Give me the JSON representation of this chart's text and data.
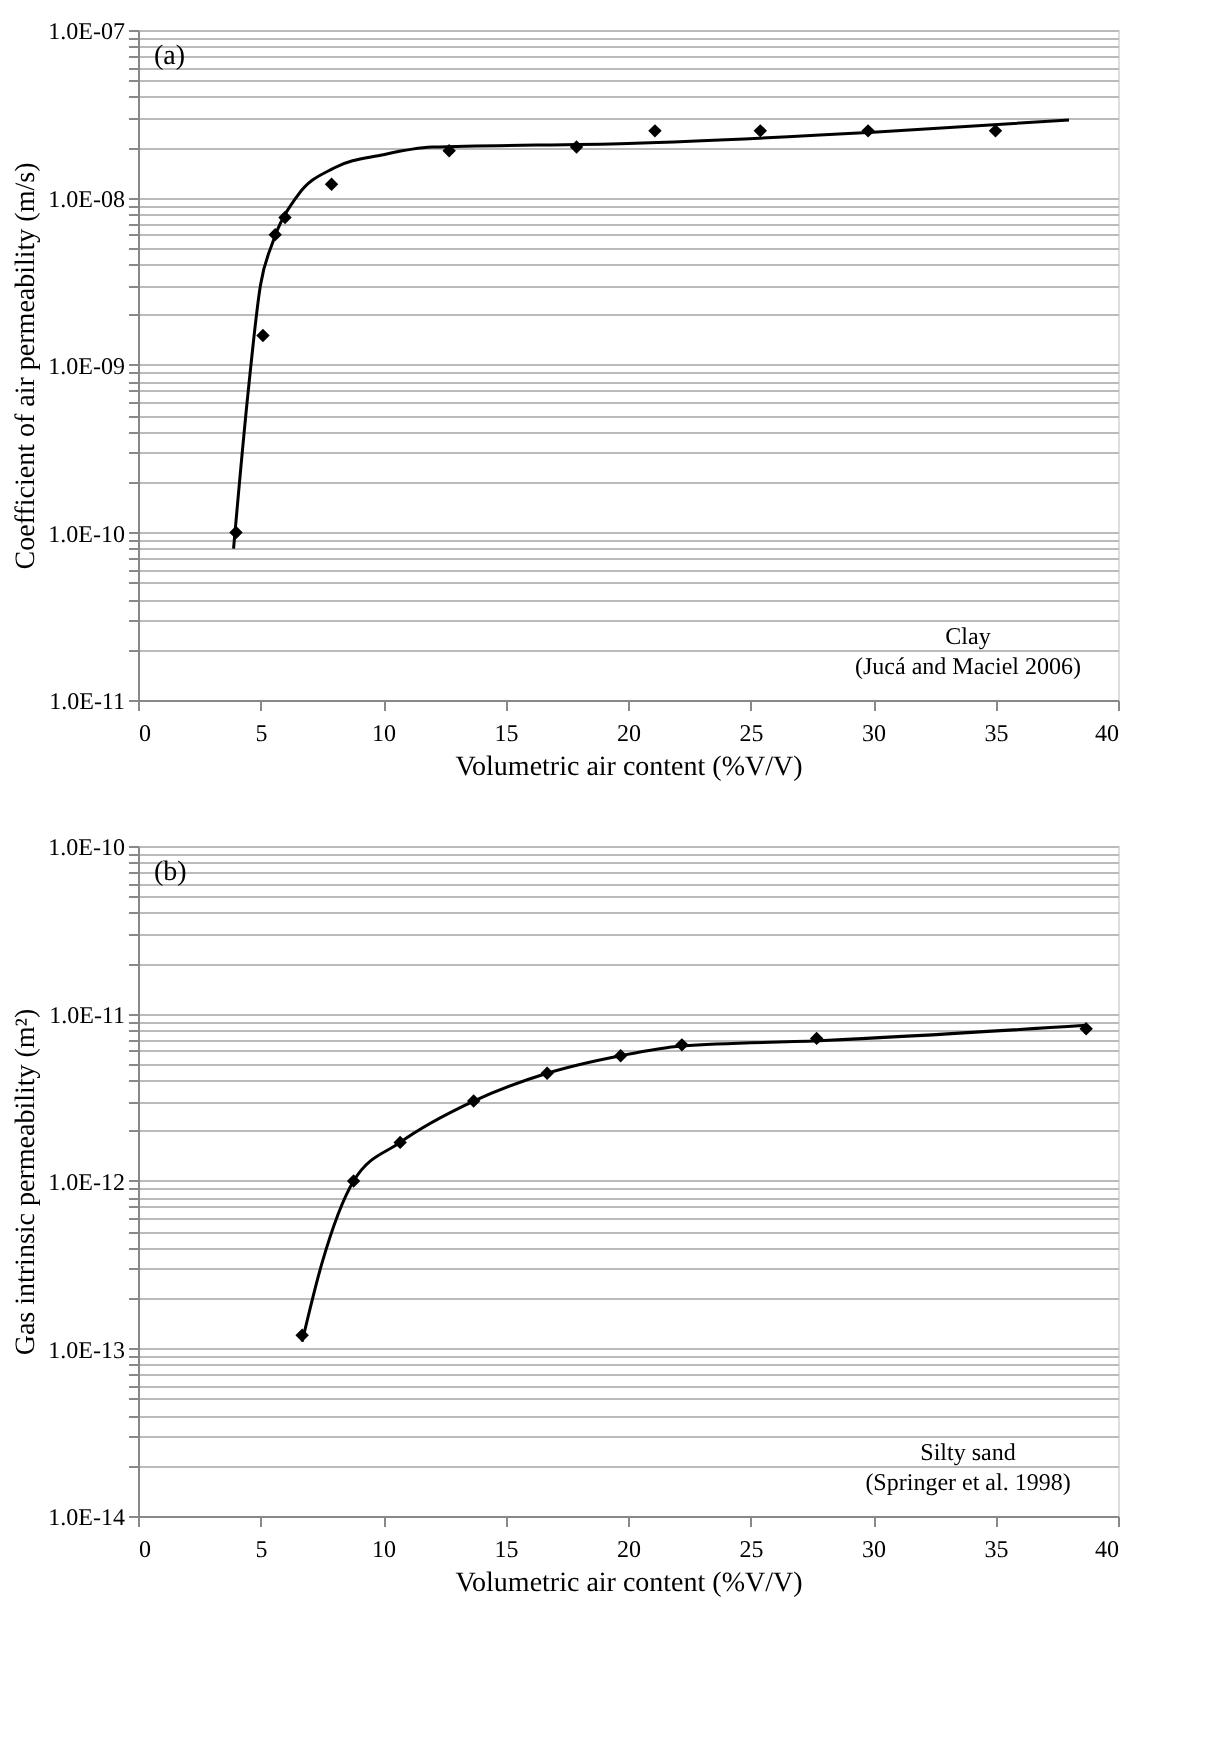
{
  "chart_data": [
    {
      "type": "scatter",
      "xlabel": "Volumetric air content (%V/V)",
      "ylabel": "Coefficient of air permeability (m/s)",
      "log": "y",
      "grid": "y",
      "marker": "diamond",
      "xlim": [
        0,
        40
      ],
      "xticks": [
        0,
        5,
        10,
        15,
        20,
        25,
        30,
        35,
        40
      ],
      "ylim": [
        1e-11,
        1e-07
      ],
      "yticks": [
        {
          "value": 1e-11,
          "label": "1.0E-11"
        },
        {
          "value": 2e-11,
          "label": null
        },
        {
          "value": 3e-11,
          "label": null
        },
        {
          "value": 4e-11,
          "label": null
        },
        {
          "value": 5e-11,
          "label": null
        },
        {
          "value": 6e-11,
          "label": null
        },
        {
          "value": 7e-11,
          "label": null
        },
        {
          "value": 8e-11,
          "label": null
        },
        {
          "value": 9e-11,
          "label": null
        },
        {
          "value": 1e-10,
          "label": "1.0E-10"
        },
        {
          "value": 2e-10,
          "label": null
        },
        {
          "value": 3e-10,
          "label": null
        },
        {
          "value": 4e-10,
          "label": null
        },
        {
          "value": 5e-10,
          "label": null
        },
        {
          "value": 6e-10,
          "label": null
        },
        {
          "value": 7e-10,
          "label": null
        },
        {
          "value": 8e-10,
          "label": null
        },
        {
          "value": 9e-10,
          "label": null
        },
        {
          "value": 1e-09,
          "label": "1.0E-09"
        },
        {
          "value": 2e-09,
          "label": null
        },
        {
          "value": 3e-09,
          "label": null
        },
        {
          "value": 4e-09,
          "label": null
        },
        {
          "value": 5e-09,
          "label": null
        },
        {
          "value": 6e-09,
          "label": null
        },
        {
          "value": 7e-09,
          "label": null
        },
        {
          "value": 8e-09,
          "label": null
        },
        {
          "value": 9e-09,
          "label": null
        },
        {
          "value": 1e-08,
          "label": "1.0E-08"
        },
        {
          "value": 2e-08,
          "label": null
        },
        {
          "value": 3e-08,
          "label": null
        },
        {
          "value": 4e-08,
          "label": null
        },
        {
          "value": 5e-08,
          "label": null
        },
        {
          "value": 6e-08,
          "label": null
        },
        {
          "value": 7e-08,
          "label": null
        },
        {
          "value": 8e-08,
          "label": null
        },
        {
          "value": 9e-08,
          "label": null
        },
        {
          "value": 1e-07,
          "label": "1.0E-07"
        }
      ],
      "annotations": [
        "(a)",
        "Clay",
        "(Jucá and Maciel 2006)"
      ],
      "series": [
        {
          "color": "#000000",
          "x": [
            4,
            5.1,
            5.6,
            6,
            7.9,
            12.7,
            17.9,
            21.1,
            25.4,
            29.8,
            35
          ],
          "values": [
            1e-10,
            1.5e-09,
            6e-09,
            7.6e-09,
            1.2e-08,
            1.9e-08,
            2e-08,
            2.5e-08,
            2.5e-08,
            2.5e-08,
            2.5e-08
          ]
        },
        {
          "type": "line",
          "color": "#000000",
          "marker": "none",
          "line_style": "solid",
          "x": [
            3.9,
            4.5,
            5,
            5.5,
            6.5,
            8,
            10,
            12,
            20,
            30,
            38
          ],
          "values": [
            8e-11,
            7e-10,
            3e-09,
            5.4e-09,
            1.02e-08,
            1.5e-08,
            1.8e-08,
            2e-08,
            2.1e-08,
            2.45e-08,
            2.9e-08
          ]
        }
      ]
    },
    {
      "type": "scatter",
      "xlabel": "Volumetric air content (%V/V)",
      "ylabel": "Gas intrinsic permeability (m²)",
      "log": "y",
      "grid": "y",
      "marker": "diamond",
      "xlim": [
        0,
        40
      ],
      "xticks": [
        0,
        5,
        10,
        15,
        20,
        25,
        30,
        35,
        40
      ],
      "ylim": [
        1e-14,
        1e-10
      ],
      "yticks": [
        {
          "value": 1e-14,
          "label": "1.0E-14"
        },
        {
          "value": 2e-14,
          "label": null
        },
        {
          "value": 3e-14,
          "label": null
        },
        {
          "value": 4e-14,
          "label": null
        },
        {
          "value": 5e-14,
          "label": null
        },
        {
          "value": 6e-14,
          "label": null
        },
        {
          "value": 7e-14,
          "label": null
        },
        {
          "value": 8e-14,
          "label": null
        },
        {
          "value": 9e-14,
          "label": null
        },
        {
          "value": 1e-13,
          "label": "1.0E-13"
        },
        {
          "value": 2e-13,
          "label": null
        },
        {
          "value": 3e-13,
          "label": null
        },
        {
          "value": 4e-13,
          "label": null
        },
        {
          "value": 5e-13,
          "label": null
        },
        {
          "value": 6e-13,
          "label": null
        },
        {
          "value": 7e-13,
          "label": null
        },
        {
          "value": 8e-13,
          "label": null
        },
        {
          "value": 9e-13,
          "label": null
        },
        {
          "value": 1e-12,
          "label": "1.0E-12"
        },
        {
          "value": 2e-12,
          "label": null
        },
        {
          "value": 3e-12,
          "label": null
        },
        {
          "value": 4e-12,
          "label": null
        },
        {
          "value": 5e-12,
          "label": null
        },
        {
          "value": 6e-12,
          "label": null
        },
        {
          "value": 7e-12,
          "label": null
        },
        {
          "value": 8e-12,
          "label": null
        },
        {
          "value": 9e-12,
          "label": null
        },
        {
          "value": 1e-11,
          "label": "1.0E-11"
        },
        {
          "value": 2e-11,
          "label": null
        },
        {
          "value": 3e-11,
          "label": null
        },
        {
          "value": 4e-11,
          "label": null
        },
        {
          "value": 5e-11,
          "label": null
        },
        {
          "value": 6e-11,
          "label": null
        },
        {
          "value": 7e-11,
          "label": null
        },
        {
          "value": 8e-11,
          "label": null
        },
        {
          "value": 9e-11,
          "label": null
        },
        {
          "value": 1e-10,
          "label": "1.0E-10"
        }
      ],
      "annotations": [
        "(b)",
        "Silty sand",
        "(Springer et al. 1998)"
      ],
      "series": [
        {
          "color": "#000000",
          "x": [
            6.7,
            8.8,
            10.7,
            13.7,
            16.7,
            19.7,
            22.2,
            27.7,
            38.7
          ],
          "values": [
            1.2e-13,
            1e-12,
            1.7e-12,
            3e-12,
            4.4e-12,
            5.6e-12,
            6.5e-12,
            7.1e-12,
            8.1e-12
          ]
        },
        {
          "type": "line",
          "color": "#000000",
          "marker": "none",
          "line_style": "solid",
          "x": [
            6.7,
            7.5,
            8.8,
            10.7,
            13.7,
            16.7,
            19.7,
            22.2,
            28,
            38.7
          ],
          "values": [
            1.1e-13,
            3.2e-13,
            1e-12,
            1.7e-12,
            3e-12,
            4.4e-12,
            5.6e-12,
            6.4e-12,
            6.9e-12,
            8.5e-12
          ]
        }
      ]
    }
  ]
}
